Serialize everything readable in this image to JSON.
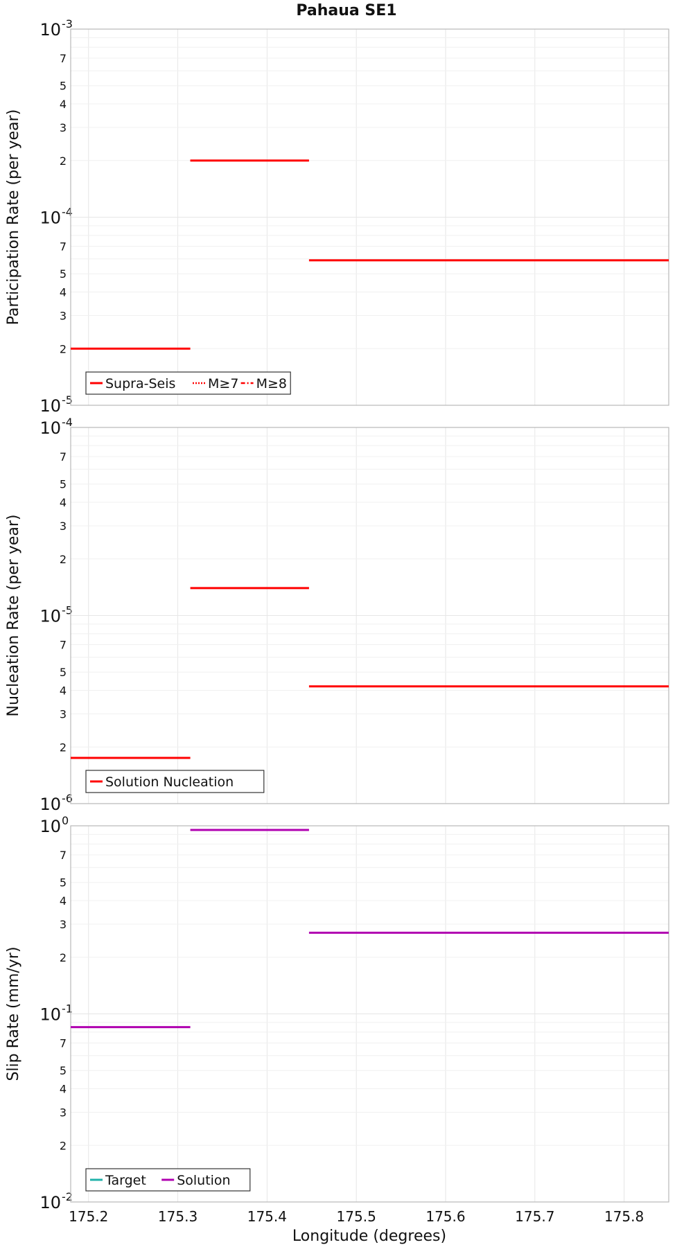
{
  "chart_data": {
    "title": "Pahaua SE1",
    "xlabel": "Longitude (degrees)",
    "xlim": [
      175.18,
      175.85
    ],
    "xticks": [
      "175.2",
      "175.3",
      "175.4",
      "175.5",
      "175.6",
      "175.7",
      "175.8"
    ],
    "xtick_values": [
      175.2,
      175.3,
      175.4,
      175.5,
      175.6,
      175.7,
      175.8
    ],
    "panels": [
      {
        "type": "line",
        "ylabel": "Participation Rate (per year)",
        "yscale": "log",
        "ylim": [
          1e-05,
          0.001
        ],
        "major_exponents": [
          "-5",
          "-4",
          "-3"
        ],
        "minor_labels": [
          "2",
          "3",
          "4",
          "5",
          "7"
        ],
        "legend": [
          "Supra-Seis",
          "M≥7",
          "M≥8"
        ],
        "series": [
          {
            "name": "Supra-Seis",
            "color": "#ff0000",
            "style": "solid",
            "segments": [
              {
                "x": [
                  175.18,
                  175.314
                ],
                "y": 2e-05
              },
              {
                "x": [
                  175.314,
                  175.447
                ],
                "y": 0.0002
              },
              {
                "x": [
                  175.447,
                  175.85
                ],
                "y": 5.9e-05
              }
            ]
          },
          {
            "name": "M≥7",
            "color": "#ff0000",
            "style": "dotted",
            "segments": [
              {
                "x": [
                  175.314,
                  175.447
                ],
                "y": 0.0002
              }
            ]
          },
          {
            "name": "M≥8",
            "color": "#ff0000",
            "style": "dashdot",
            "segments": []
          }
        ]
      },
      {
        "type": "line",
        "ylabel": "Nucleation Rate (per year)",
        "yscale": "log",
        "ylim": [
          1e-06,
          0.0001
        ],
        "major_exponents": [
          "-6",
          "-5",
          "-4"
        ],
        "minor_labels": [
          "2",
          "3",
          "4",
          "5",
          "7"
        ],
        "legend": [
          "Solution Nucleation"
        ],
        "series": [
          {
            "name": "Solution Nucleation",
            "color": "#ff0000",
            "style": "solid",
            "segments": [
              {
                "x": [
                  175.18,
                  175.314
                ],
                "y": 1.75e-06
              },
              {
                "x": [
                  175.314,
                  175.447
                ],
                "y": 1.4e-05
              },
              {
                "x": [
                  175.447,
                  175.85
                ],
                "y": 4.2e-06
              }
            ]
          }
        ]
      },
      {
        "type": "line",
        "ylabel": "Slip Rate (mm/yr)",
        "yscale": "log",
        "ylim": [
          0.01,
          1.0
        ],
        "major_exponents": [
          "-2",
          "-1",
          "0"
        ],
        "minor_labels": [
          "2",
          "3",
          "4",
          "5",
          "7"
        ],
        "legend": [
          "Target",
          "Solution"
        ],
        "series": [
          {
            "name": "Target",
            "color": "#20b2aa",
            "style": "solid",
            "segments": []
          },
          {
            "name": "Solution",
            "color": "#b000b0",
            "style": "solid",
            "segments": [
              {
                "x": [
                  175.18,
                  175.314
                ],
                "y": 0.085
              },
              {
                "x": [
                  175.314,
                  175.447
                ],
                "y": 0.95
              },
              {
                "x": [
                  175.447,
                  175.85
                ],
                "y": 0.27
              }
            ]
          }
        ]
      }
    ]
  }
}
